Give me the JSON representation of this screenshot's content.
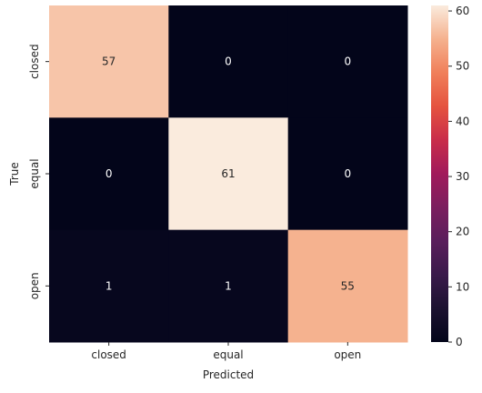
{
  "chart_data": {
    "type": "heatmap",
    "title": "",
    "xlabel": "Predicted",
    "ylabel": "True",
    "x_categories": [
      "closed",
      "equal",
      "open"
    ],
    "y_categories": [
      "closed",
      "equal",
      "open"
    ],
    "values": [
      [
        57,
        0,
        0
      ],
      [
        0,
        61,
        0
      ],
      [
        1,
        1,
        55
      ]
    ],
    "colorbar": {
      "min": 0,
      "max": 61,
      "ticks": [
        0,
        10,
        20,
        30,
        40,
        50,
        60
      ]
    },
    "colors": {
      "low": "#03051a",
      "high": "#faebdd"
    }
  }
}
